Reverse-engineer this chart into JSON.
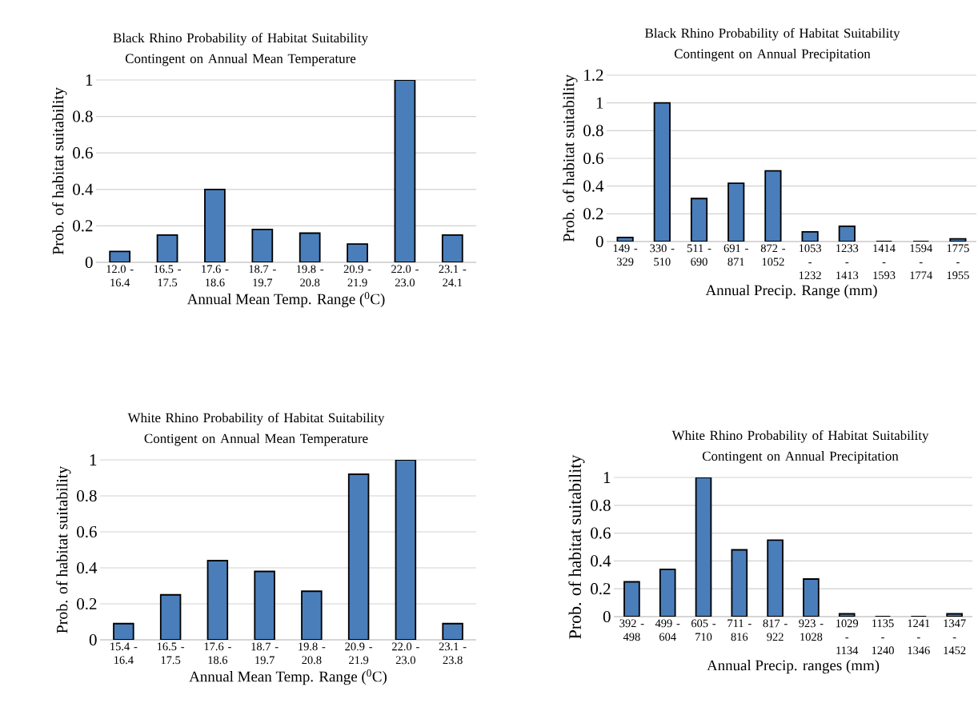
{
  "chart_data": [
    {
      "type": "bar",
      "title": "Black Rhino Probability of Habitat Suitability Contingent on Annual Mean Temperature",
      "xlabel": "Annual Mean Temp. Range ($^{0}$C)",
      "ylabel": "Prob. of habitat suitability",
      "categories": [
        "12.0 - 16.4",
        "16.5 - 17.5",
        "17.6 - 18.6",
        "18.7 - 19.7",
        "19.8 - 20.8",
        "20.9 - 21.9",
        "22.0 - 23.0",
        "23.1 - 24.1"
      ],
      "values": [
        0.06,
        0.15,
        0.4,
        0.18,
        0.16,
        0.1,
        1.0,
        0.15
      ],
      "color": "#4a7ebb",
      "ylim": [
        0,
        1
      ],
      "yticks": [
        0,
        0.2,
        0.4,
        0.6,
        0.8,
        1
      ],
      "grid": "y"
    },
    {
      "type": "bar",
      "title": "Black Rhino Probability of Habitat Suitability Contingent on Annual Precipitation",
      "xlabel": "Annual Precip. Range (mm)",
      "ylabel": "Prob. of habitat suitability",
      "categories": [
        "149 - 329",
        "330 - 510",
        "511 - 690",
        "691 - 871",
        "872 - 1052",
        "1053 - 1232",
        "1233 - 1413",
        "1414 - 1593",
        "1594 - 1774",
        "1775 - 1955"
      ],
      "values": [
        0.03,
        1.0,
        0.31,
        0.42,
        0.51,
        0.07,
        0.11,
        0,
        0,
        0.02
      ],
      "color": "#4a7ebb",
      "ylim": [
        0,
        1.2
      ],
      "yticks": [
        0,
        0.2,
        0.4,
        0.6,
        0.8,
        1,
        1.2
      ],
      "grid": "y"
    },
    {
      "type": "bar",
      "title": "White Rhino Probability of Habitat Suitability Contigent on Annual Mean Temperature",
      "xlabel": "Annual Mean Temp. Range ($^{0}$C)",
      "ylabel": "Prob. of habitat suitability",
      "categories": [
        "15.4 - 16.4",
        "16.5 - 17.5",
        "17.6 - 18.6",
        "18.7 - 19.7",
        "19.8 - 20.8",
        "20.9 - 21.9",
        "22.0 - 23.0",
        "23.1 - 23.8"
      ],
      "values": [
        0.09,
        0.25,
        0.44,
        0.38,
        0.27,
        0.92,
        1.0,
        0.09
      ],
      "color": "#4a7ebb",
      "ylim": [
        0,
        1
      ],
      "yticks": [
        0,
        0.2,
        0.4,
        0.6,
        0.8,
        1
      ],
      "grid": "y"
    },
    {
      "type": "bar",
      "title": "White Rhino Probability of Habitat Suitability Contingent on Annual Precipitation",
      "xlabel": "Annual Precip. ranges (mm)",
      "ylabel": "Prob. of habitat suitability",
      "categories": [
        "392 - 498",
        "499 - 604",
        "605 - 710",
        "711 - 816",
        "817 - 922",
        "923 - 1028",
        "1029 - 1134",
        "1135 - 1240",
        "1241 - 1346",
        "1347 - 1452"
      ],
      "values": [
        0.25,
        0.34,
        1.0,
        0.48,
        0.55,
        0.27,
        0.02,
        0,
        0,
        0.02
      ],
      "color": "#4a7ebb",
      "ylim": [
        0,
        1
      ],
      "yticks": [
        0,
        0.2,
        0.4,
        0.6,
        0.8,
        1
      ],
      "grid": "y"
    }
  ]
}
